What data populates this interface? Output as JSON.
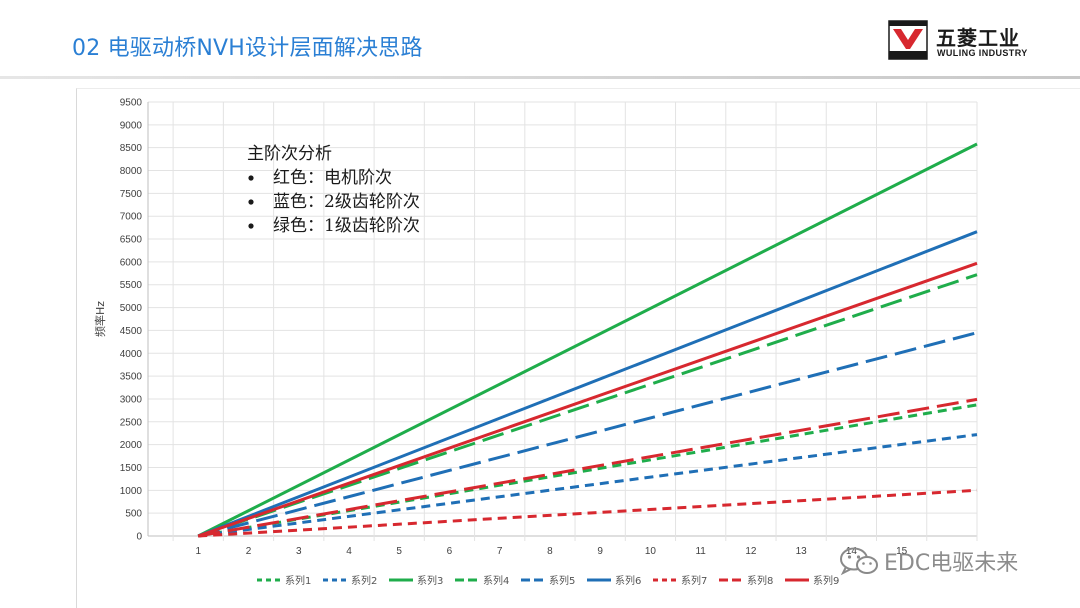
{
  "slide": {
    "title": "02 电驱动桥NVH设计层面解决思路"
  },
  "logo": {
    "cn": "五菱工业",
    "en": "WULING INDUSTRY",
    "badge_colors": {
      "red": "#d7282f",
      "dark": "#1a1a1a"
    }
  },
  "watermark": {
    "icon": "wechat-icon",
    "text": "EDC电驱未来"
  },
  "chart_data": {
    "type": "line",
    "ylabel": "频率Hz",
    "xlabel": "",
    "x_ticks": [
      1,
      2,
      3,
      4,
      5,
      6,
      7,
      8,
      9,
      10,
      11,
      12,
      13,
      14,
      15,
      16
    ],
    "x_tick_labels": [
      "1",
      "2",
      "3",
      "4",
      "5",
      "6",
      "7",
      "8",
      "9",
      "10",
      "11",
      "12",
      "13",
      "14",
      "15",
      ""
    ],
    "xlim": [
      0,
      16.5
    ],
    "ylim": [
      0,
      9500
    ],
    "y_ticks": [
      0,
      500,
      1000,
      1500,
      2000,
      2500,
      3000,
      3500,
      4000,
      4500,
      5000,
      5500,
      6000,
      6500,
      7000,
      7500,
      8000,
      8500,
      9000,
      9500
    ],
    "grid": true,
    "legend_position": "bottom",
    "annotation": {
      "heading": "主阶次分析",
      "bullets": [
        "红色：电机阶次",
        "蓝色：2级齿轮阶次",
        "绿色：1级齿轮阶次"
      ]
    },
    "colors": {
      "green": "#1fad4b",
      "blue": "#1f6fb6",
      "red": "#d7282f"
    },
    "series": [
      {
        "name": "系列1",
        "color": "green",
        "dash": "short",
        "x": [
          1,
          16.5
        ],
        "y": [
          0,
          2870
        ]
      },
      {
        "name": "系列2",
        "color": "blue",
        "dash": "short",
        "x": [
          1,
          16.5
        ],
        "y": [
          0,
          2220
        ]
      },
      {
        "name": "系列3",
        "color": "green",
        "dash": "solid",
        "x": [
          1,
          16.5
        ],
        "y": [
          0,
          8580
        ]
      },
      {
        "name": "系列4",
        "color": "green",
        "dash": "long",
        "x": [
          1,
          16.5
        ],
        "y": [
          0,
          5720
        ]
      },
      {
        "name": "系列5",
        "color": "blue",
        "dash": "long",
        "x": [
          1,
          16.5
        ],
        "y": [
          0,
          4450
        ]
      },
      {
        "name": "系列6",
        "color": "blue",
        "dash": "solid",
        "x": [
          1,
          16.5
        ],
        "y": [
          0,
          6660
        ]
      },
      {
        "name": "系列7",
        "color": "red",
        "dash": "short",
        "x": [
          1,
          16.5
        ],
        "y": [
          0,
          1000
        ]
      },
      {
        "name": "系列8",
        "color": "red",
        "dash": "long",
        "x": [
          1,
          16.5
        ],
        "y": [
          0,
          2990
        ]
      },
      {
        "name": "系列9",
        "color": "red",
        "dash": "solid",
        "x": [
          1,
          16.5
        ],
        "y": [
          0,
          5970
        ]
      }
    ]
  }
}
